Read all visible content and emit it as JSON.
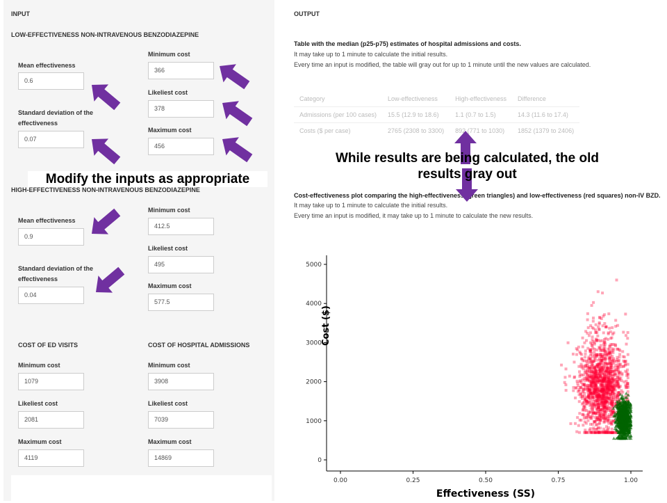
{
  "input": {
    "title": "INPUT",
    "low": {
      "title": "LOW-EFFECTIVENESS NON-INTRAVENOUS BENZODIAZEPINE",
      "mean_label": "Mean effectiveness",
      "mean": "0.6",
      "sd_label": "Standard deviation of the effectiveness",
      "sd": "0.07",
      "min_label": "Minimum cost",
      "min": "366",
      "likely_label": "Likeliest cost",
      "likely": "378",
      "max_label": "Maximum cost",
      "max": "456"
    },
    "high": {
      "title": "HIGH-EFFECTIVENESS NON-INTRAVENOUS BENZODIAZEPINE",
      "mean_label": "Mean effectiveness",
      "mean": "0.9",
      "sd_label": "Standard deviation of the effectiveness",
      "sd": "0.04",
      "min_label": "Minimum cost",
      "min": "412.5",
      "likely_label": "Likeliest cost",
      "likely": "495",
      "max_label": "Maximum cost",
      "max": "577.5"
    },
    "ed": {
      "title": "COST OF ED VISITS",
      "min_label": "Minimum cost",
      "min": "1079",
      "likely_label": "Likeliest cost",
      "likely": "2081",
      "max_label": "Maximum cost",
      "max": "4119"
    },
    "hosp": {
      "title": "COST OF HOSPITAL ADMISSIONS",
      "min_label": "Minimum cost",
      "min": "3908",
      "likely_label": "Likeliest cost",
      "likely": "7039",
      "max_label": "Maximum cost",
      "max": "14869"
    }
  },
  "output": {
    "title": "OUTPUT",
    "table_title": "Table with the median (p25-p75) estimates of hospital admissions and costs.",
    "table_note1": "It may take up to 1 minute to calculate the initial results.",
    "table_note2": "Every time an input is modified, the table will gray out for up to 1 minute until the new values are calculated.",
    "table": {
      "headers": [
        "Category",
        "Low-effectiveness",
        "High-effectiveness",
        "Difference"
      ],
      "rows": [
        [
          "Admissions (per 100 cases)",
          "15.5 (12.9 to 18.6)",
          "1.1 (0.7 to 1.5)",
          "14.3 (11.6 to 17.4)"
        ],
        [
          "Costs ($ per case)",
          "2765 (2308 to 3300)",
          "892 (771 to 1030)",
          "1852 (1379 to 2406)"
        ]
      ]
    },
    "plot_title": "Cost-effectiveness plot comparing the high-effectiveness (green triangles) and low-effectiveness (red squares) non-IV BZD.",
    "plot_note1": "It may take up to 1 minute to calculate the initial results.",
    "plot_note2": "Every time an input is modified, it may take up to 1 minute to calculate the new results."
  },
  "annotations": {
    "modify": "Modify  the inputs as appropriate",
    "gray": "While results are being calculated, the old results gray out",
    "arrow_color": "#7030a0"
  },
  "chart_data": {
    "type": "scatter",
    "xlabel": "Effectiveness (SS)",
    "ylabel": "Cost ($)",
    "xlim": [
      0,
      1
    ],
    "ylim": [
      0,
      5000
    ],
    "xticks": [
      "0.00",
      "0.25",
      "0.50",
      "0.75",
      "1.00"
    ],
    "yticks": [
      "0",
      "1000",
      "2000",
      "3000",
      "4000",
      "5000"
    ],
    "series": [
      {
        "name": "low-effectiveness (red squares)",
        "color": "#ff0033",
        "eff_mean": 0.9,
        "eff_sd": 0.04,
        "cost_mean": 1900,
        "cost_sd": 650,
        "eff_range": [
          0.76,
          0.99
        ],
        "cost_range": [
          700,
          4600
        ]
      },
      {
        "name": "high-effectiveness (green triangles)",
        "color": "#006400",
        "eff_mean": 0.975,
        "eff_sd": 0.012,
        "cost_mean": 1050,
        "cost_sd": 230,
        "eff_range": [
          0.94,
          1.0
        ],
        "cost_range": [
          550,
          1850
        ]
      }
    ]
  }
}
